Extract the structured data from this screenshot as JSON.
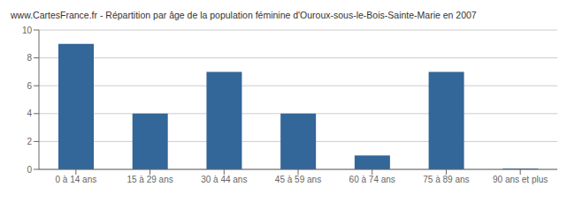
{
  "chart_data": {
    "type": "bar",
    "title": "www.CartesFrance.fr - Répartition par âge de la population féminine d'Ouroux-sous-le-Bois-Sainte-Marie en 2007",
    "categories": [
      "0 à 14 ans",
      "15 à 29 ans",
      "30 à 44 ans",
      "45 à 59 ans",
      "60 à 74 ans",
      "75 à 89 ans",
      "90 ans et plus"
    ],
    "values": [
      9,
      4,
      7,
      4,
      1,
      7,
      0.07
    ],
    "color": "#336699",
    "ylim": [
      0,
      10
    ],
    "yticks": [
      0,
      2,
      4,
      6,
      8,
      10
    ],
    "grid": true
  }
}
